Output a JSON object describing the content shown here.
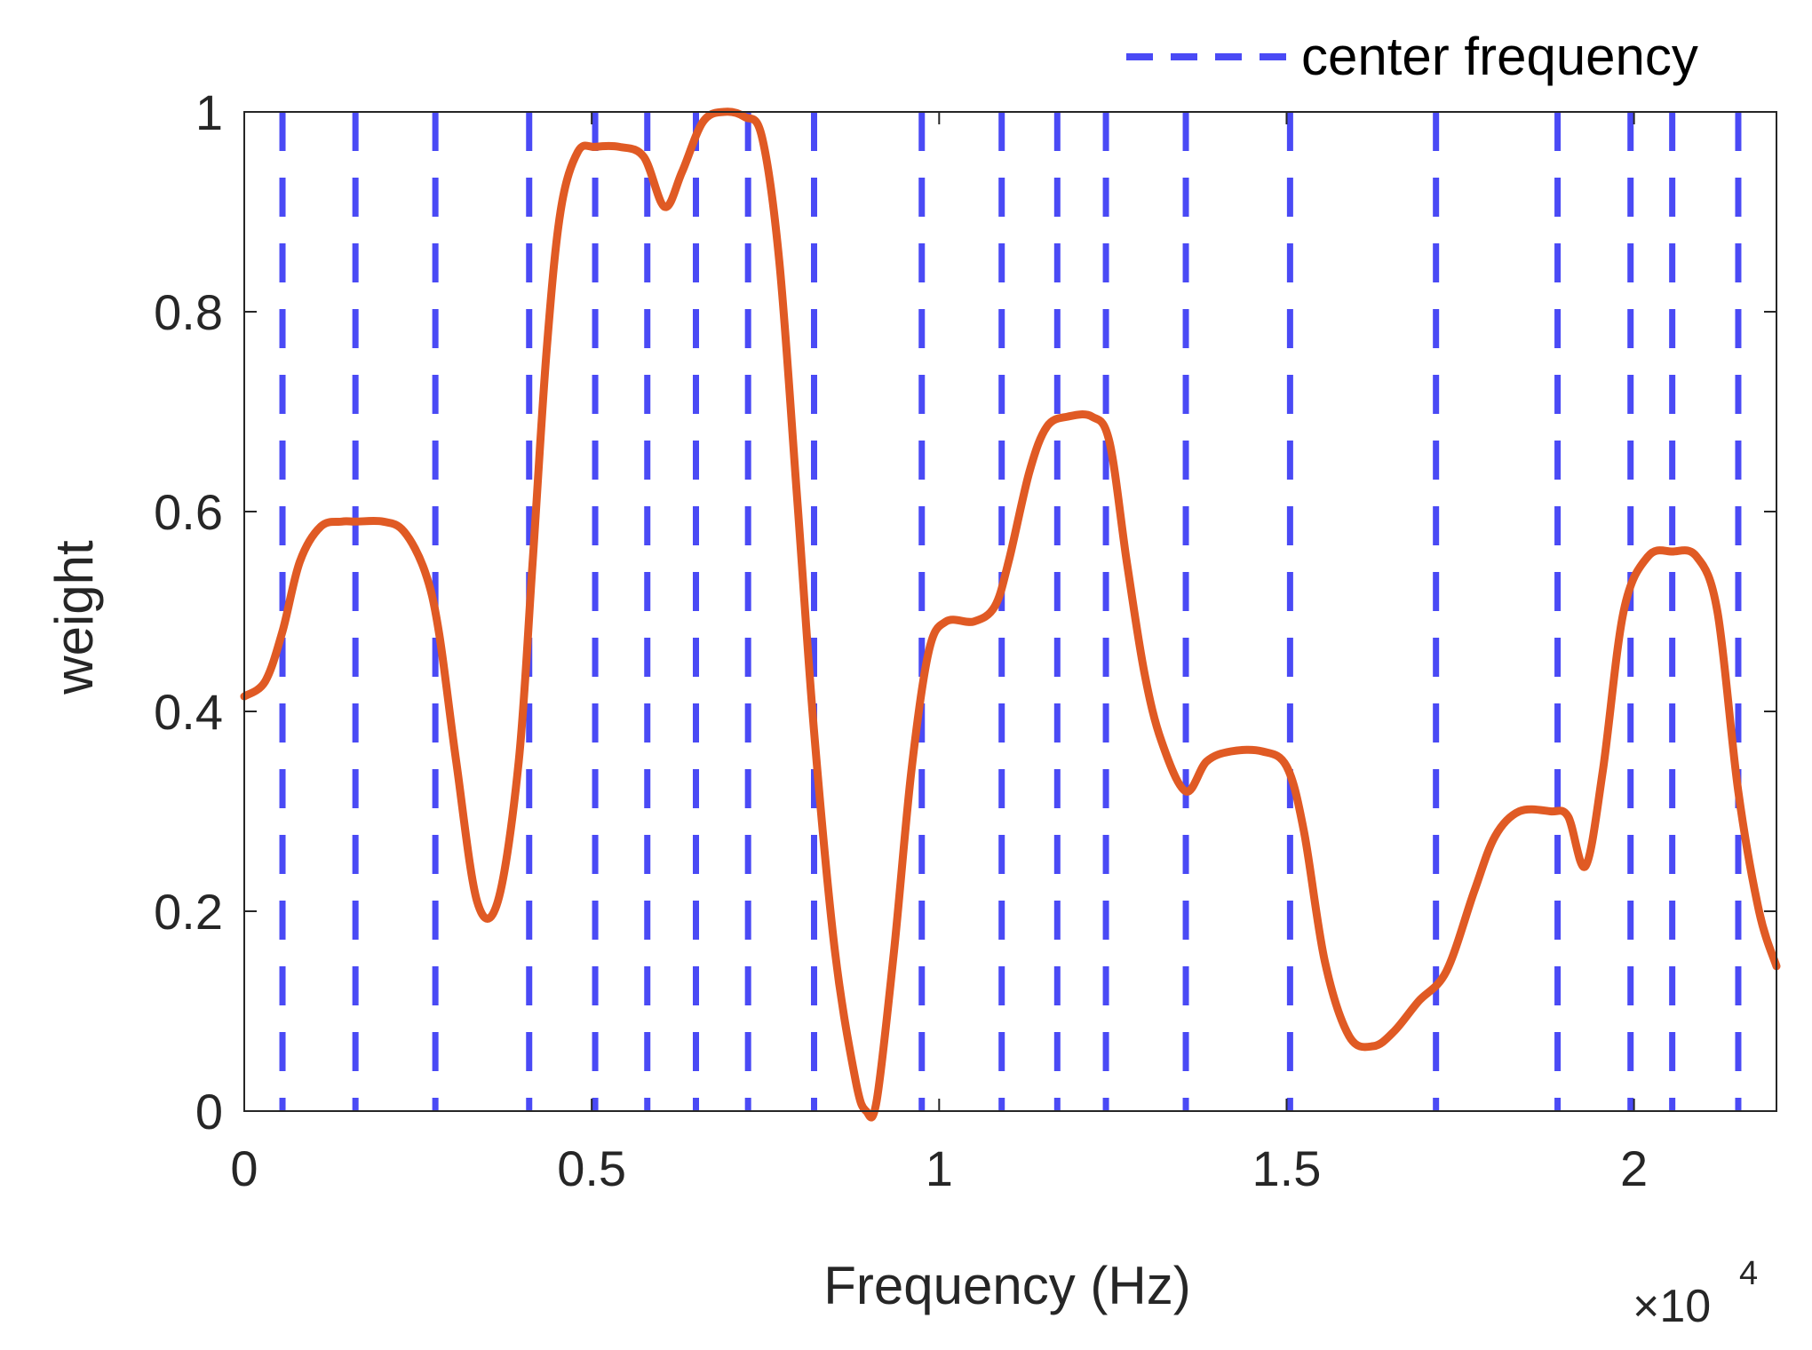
{
  "chart_data": {
    "type": "line",
    "xlabel": "Frequency (Hz)",
    "ylabel": "weight",
    "x_exponent_label": {
      "base": "×10",
      "exponent": "4"
    },
    "xlim": [
      0,
      22050
    ],
    "ylim": [
      0,
      1
    ],
    "xticks": [
      0,
      5000,
      10000,
      15000,
      20000
    ],
    "xtick_labels": [
      "0",
      "0.5",
      "1",
      "1.5",
      "2"
    ],
    "yticks": [
      0,
      0.2,
      0.4,
      0.6,
      0.8,
      1
    ],
    "ytick_labels": [
      "0",
      "0.2",
      "0.4",
      "0.6",
      "0.8",
      "1"
    ],
    "grid": false,
    "legend": {
      "position": "top-right, outside axes",
      "entries": [
        "center frequency"
      ]
    },
    "center_frequency": {
      "name": "center frequency",
      "style": "dashed",
      "color": "#4a4af5",
      "x": [
        550,
        1600,
        2750,
        4100,
        5050,
        5800,
        6500,
        7250,
        8200,
        9750,
        10900,
        11700,
        12400,
        13550,
        15050,
        17150,
        18900,
        19950,
        20550,
        21500
      ]
    },
    "series": [
      {
        "color": "#e05a24",
        "x": [
          0,
          300,
          550,
          800,
          1100,
          1400,
          1600,
          2000,
          2300,
          2600,
          2800,
          3050,
          3350,
          3650,
          3950,
          4150,
          4350,
          4550,
          4800,
          5050,
          5400,
          5750,
          6050,
          6300,
          6600,
          6900,
          7200,
          7450,
          7700,
          7950,
          8200,
          8500,
          8800,
          8950,
          9100,
          9350,
          9600,
          9850,
          10100,
          10500,
          10800,
          11000,
          11300,
          11550,
          11850,
          12200,
          12450,
          12700,
          12950,
          13200,
          13550,
          13850,
          14200,
          14650,
          15000,
          15250,
          15550,
          15900,
          16250,
          16550,
          16900,
          17300,
          17700,
          18000,
          18350,
          18800,
          19050,
          19300,
          19550,
          19850,
          20200,
          20550,
          20900,
          21200,
          21500,
          21800,
          22050
        ],
        "y": [
          0.415,
          0.43,
          0.48,
          0.55,
          0.585,
          0.59,
          0.59,
          0.59,
          0.58,
          0.54,
          0.48,
          0.35,
          0.21,
          0.21,
          0.35,
          0.55,
          0.76,
          0.9,
          0.96,
          0.965,
          0.965,
          0.955,
          0.905,
          0.94,
          0.99,
          1.0,
          0.995,
          0.975,
          0.85,
          0.62,
          0.38,
          0.16,
          0.03,
          0.0,
          0.01,
          0.16,
          0.34,
          0.46,
          0.49,
          0.49,
          0.505,
          0.55,
          0.64,
          0.685,
          0.695,
          0.695,
          0.67,
          0.55,
          0.44,
          0.37,
          0.32,
          0.35,
          0.36,
          0.36,
          0.345,
          0.28,
          0.15,
          0.075,
          0.065,
          0.08,
          0.11,
          0.14,
          0.22,
          0.275,
          0.3,
          0.3,
          0.295,
          0.245,
          0.34,
          0.5,
          0.555,
          0.56,
          0.555,
          0.5,
          0.32,
          0.2,
          0.145
        ]
      }
    ]
  }
}
